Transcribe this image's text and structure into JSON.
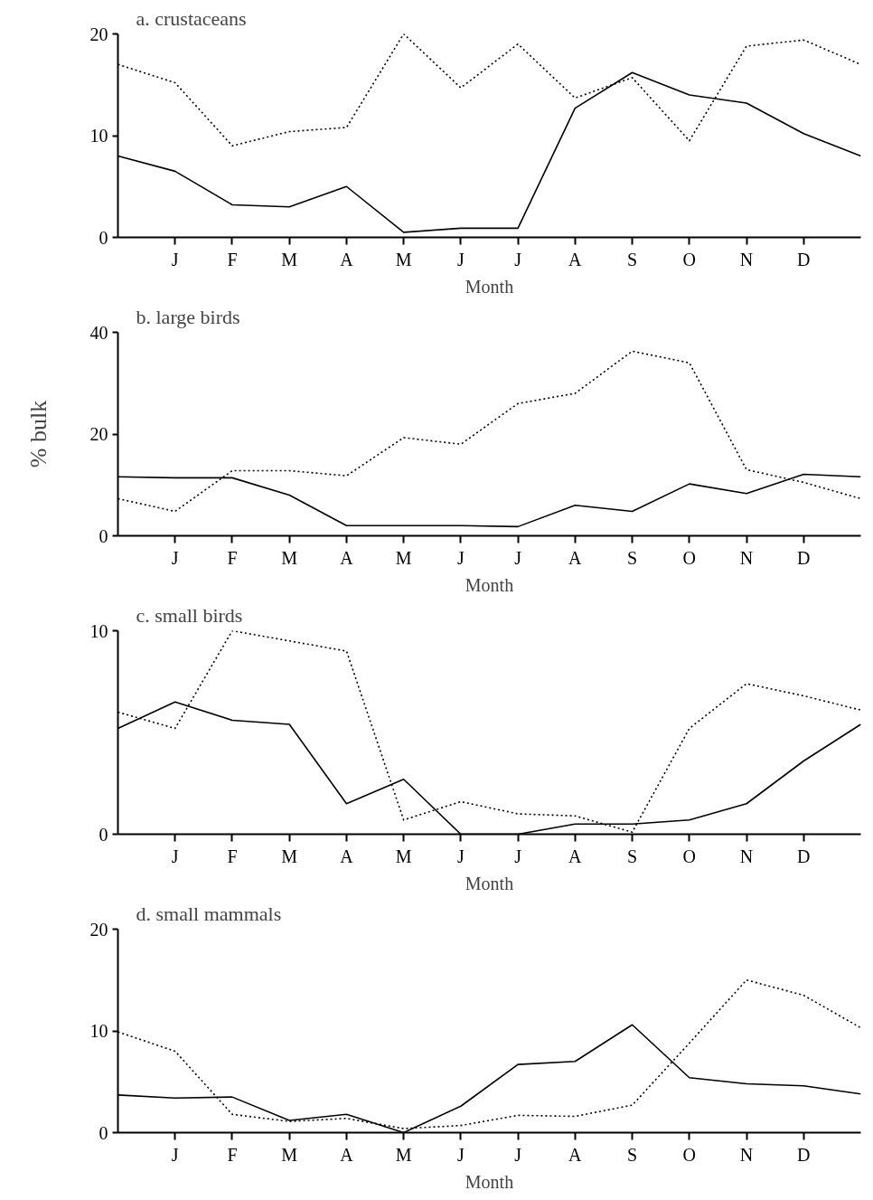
{
  "chart_data": [
    {
      "type": "line",
      "title": "a.  crustaceans",
      "xlabel": "Month",
      "grid": false,
      "marker": "none",
      "categories": [
        null,
        "J",
        "F",
        "M",
        "A",
        "M",
        "J",
        "J",
        "A",
        "S",
        "O",
        "N",
        "D",
        null
      ],
      "ylim": [
        0,
        20
      ],
      "yticks": [
        0,
        10,
        20
      ],
      "series": [
        {
          "color": "#000000",
          "line_style": "solid",
          "values": [
            8,
            6.5,
            3.2,
            3.0,
            5.0,
            0.5,
            0.9,
            0.9,
            12.7,
            16.2,
            14,
            13.2,
            10.2,
            8
          ]
        },
        {
          "color": "#000000",
          "line_style": "dotted",
          "values": [
            17,
            15.2,
            9,
            10.4,
            10.8,
            20,
            14.7,
            19,
            13.7,
            15.7,
            9.5,
            18.8,
            19.4,
            17
          ]
        }
      ]
    },
    {
      "type": "line",
      "title": "b.  large birds",
      "xlabel": "Month",
      "ylabel": "% bulk",
      "grid": false,
      "marker": "none",
      "categories": [
        null,
        "J",
        "F",
        "M",
        "A",
        "M",
        "J",
        "J",
        "A",
        "S",
        "O",
        "N",
        "D",
        null
      ],
      "ylim": [
        0,
        40
      ],
      "yticks": [
        0,
        20,
        40
      ],
      "series": [
        {
          "color": "#000000",
          "line_style": "solid",
          "values": [
            11.6,
            11.4,
            11.4,
            8,
            2,
            2,
            2,
            1.8,
            6,
            4.8,
            10.2,
            8.3,
            12.1,
            11.6
          ]
        },
        {
          "color": "#000000",
          "line_style": "dotted",
          "values": [
            7.3,
            4.8,
            12.8,
            12.8,
            11.8,
            19.3,
            18,
            26,
            28,
            36.3,
            34,
            13,
            10.5,
            7.3
          ]
        }
      ]
    },
    {
      "type": "line",
      "title": "c.  small birds",
      "xlabel": "Month",
      "grid": false,
      "marker": "none",
      "categories": [
        null,
        "J",
        "F",
        "M",
        "A",
        "M",
        "J",
        "J",
        "A",
        "S",
        "O",
        "N",
        "D",
        null
      ],
      "ylim": [
        0,
        10
      ],
      "yticks": [
        0,
        10
      ],
      "series": [
        {
          "color": "#000000",
          "line_style": "solid",
          "values": [
            5.2,
            6.5,
            5.6,
            5.4,
            1.5,
            2.7,
            0,
            0,
            0.5,
            0.5,
            0.7,
            1.5,
            3.6,
            5.4
          ]
        },
        {
          "color": "#000000",
          "line_style": "dotted",
          "values": [
            6,
            5.2,
            10,
            9.5,
            9,
            0.7,
            1.6,
            1.0,
            0.9,
            0.1,
            5.2,
            7.4,
            6.8,
            6.1
          ]
        }
      ]
    },
    {
      "type": "line",
      "title": "d.  small mammals",
      "xlabel": "Month",
      "grid": false,
      "marker": "none",
      "categories": [
        null,
        "J",
        "F",
        "M",
        "A",
        "M",
        "J",
        "J",
        "A",
        "S",
        "O",
        "N",
        "D",
        null
      ],
      "ylim": [
        0,
        20
      ],
      "yticks": [
        0,
        10,
        20
      ],
      "series": [
        {
          "color": "#000000",
          "line_style": "solid",
          "values": [
            3.7,
            3.4,
            3.5,
            1.2,
            1.8,
            0,
            2.6,
            6.7,
            7,
            10.6,
            5.4,
            4.8,
            4.6,
            3.8
          ]
        },
        {
          "color": "#000000",
          "line_style": "dotted",
          "values": [
            9.9,
            8.0,
            1.8,
            1.1,
            1.4,
            0.4,
            0.7,
            1.7,
            1.6,
            2.7,
            8.8,
            15,
            13.5,
            10.3
          ]
        }
      ]
    }
  ]
}
